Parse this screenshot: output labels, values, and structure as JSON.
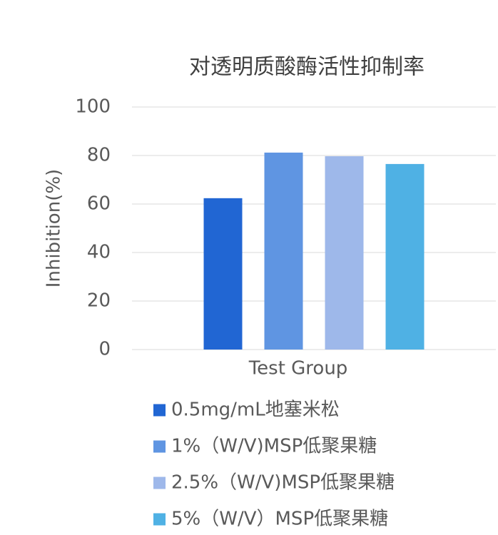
{
  "chart_data": {
    "type": "bar",
    "title": "对透明质酸酶活性抑制率",
    "y_label": "Inhibition(%)",
    "categories": [
      "Test Group"
    ],
    "series": [
      {
        "name": "0.5mg/mL地塞米松",
        "color": "#2166d3",
        "values": [
          62.4
        ]
      },
      {
        "name": "1%（W/V)MSP低聚果糖",
        "color": "#5f95e2",
        "values": [
          81.2
        ]
      },
      {
        "name": "2.5%（W/V)MSP低聚果糖",
        "color": "#9eb8ea",
        "values": [
          79.7
        ]
      },
      {
        "name": "5%（W/V）MSP低聚果糖",
        "color": "#4fb1e4",
        "values": [
          76.5
        ]
      }
    ],
    "ylim": [
      0,
      100
    ],
    "yticks": [
      0,
      20,
      40,
      60,
      80,
      100
    ],
    "grid": true,
    "legend": "bottom"
  }
}
